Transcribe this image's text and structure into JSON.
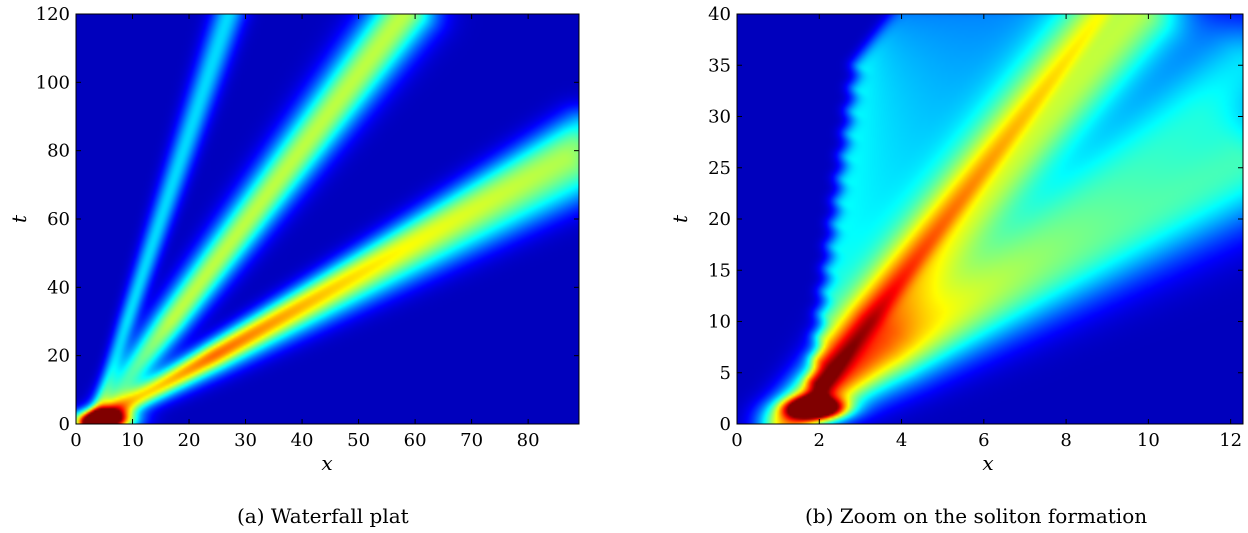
{
  "chart_data": [
    {
      "type": "heatmap",
      "caption": "(a) Waterfall plat",
      "xlabel": "x",
      "ylabel": "t",
      "xlim": [
        0,
        89
      ],
      "ylim": [
        0,
        120
      ],
      "xticks": [
        0,
        10,
        20,
        30,
        40,
        50,
        60,
        70,
        80
      ],
      "yticks": [
        0,
        20,
        40,
        60,
        80,
        100,
        120
      ],
      "colormap": "jet",
      "grid": false,
      "legend": "none",
      "bands": [
        {
          "x0": 3,
          "t0": 0,
          "x1": 27,
          "t1": 120,
          "intensity": 0.28,
          "width": 0.9
        },
        {
          "x0": 3,
          "t0": 0,
          "x1": 58,
          "t1": 120,
          "intensity": 0.5,
          "width": 1.8
        },
        {
          "x0": 3,
          "t0": 0,
          "x1": 89,
          "t1": 87,
          "intensity": 0.24,
          "width": 1.4
        },
        {
          "x0": 3,
          "t0": 0,
          "x1": 89,
          "t1": 80,
          "intensity": 0.25,
          "width": 1.4
        },
        {
          "x0": 3,
          "t0": 0,
          "x1": 89,
          "t1": 72,
          "intensity": 0.3,
          "width": 1.8
        }
      ],
      "hotspot": {
        "x": 5,
        "t": 1,
        "intensity": 0.95
      }
    },
    {
      "type": "heatmap",
      "caption": "(b) Zoom on the soliton formation",
      "xlabel": "x",
      "ylabel": "t",
      "xlim": [
        0,
        12.3
      ],
      "ylim": [
        0,
        40
      ],
      "xticks": [
        0,
        2,
        4,
        6,
        8,
        10,
        12
      ],
      "yticks": [
        0,
        5,
        10,
        15,
        20,
        25,
        30,
        35,
        40
      ],
      "colormap": "jet",
      "grid": false,
      "legend": "none",
      "bands": [
        {
          "x0": 1.2,
          "t0": 0,
          "x1": 9.6,
          "t1": 40,
          "intensity": 0.5,
          "width": 0.42
        },
        {
          "x0": 1.2,
          "t0": 0,
          "x1": 12.3,
          "t1": 35,
          "intensity": 0.28,
          "width": 0.45
        },
        {
          "x0": 1.2,
          "t0": 0,
          "x1": 12.3,
          "t1": 25,
          "intensity": 0.36,
          "width": 0.5
        }
      ],
      "ridges": {
        "x_start": 1.8,
        "t_start": 2,
        "count": 16,
        "spacing_t": 2.2,
        "slope": 0.31,
        "intensity": 0.34
      },
      "hotspot": {
        "x": 1.9,
        "t": 1.5,
        "intensity": 0.97
      }
    }
  ]
}
